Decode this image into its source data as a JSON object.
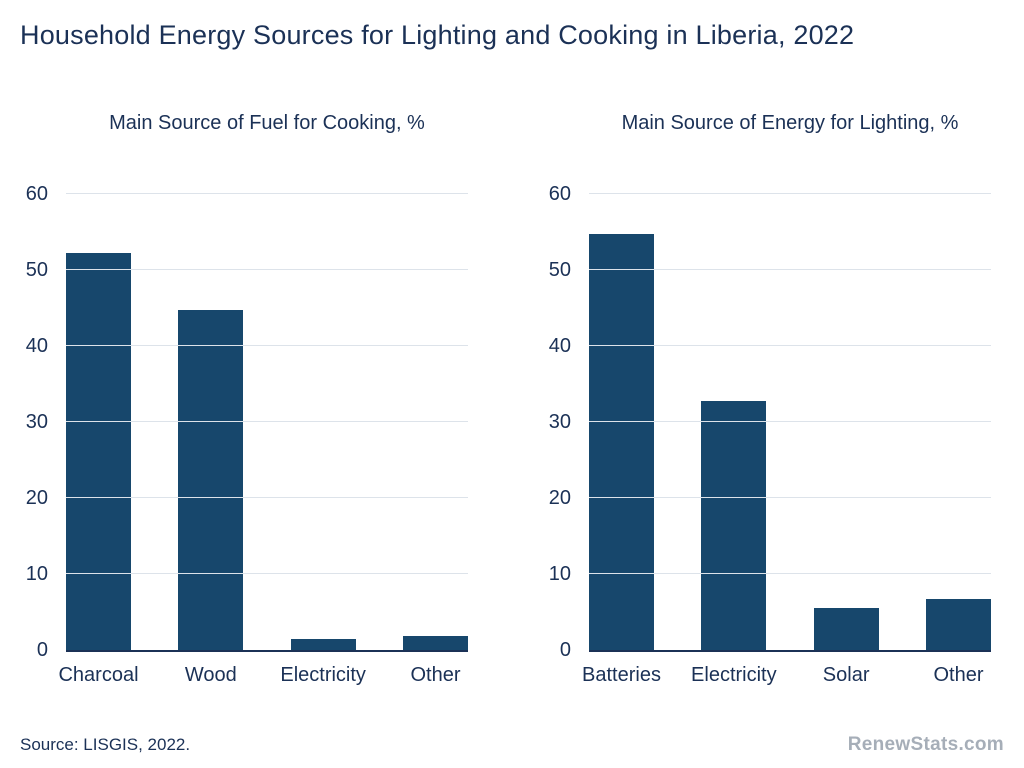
{
  "page": {
    "title": "Household Energy Sources for Lighting and Cooking in Liberia, 2022",
    "source_note": "Source: LISGIS, 2022.",
    "brand": "RenewStats.com"
  },
  "colors": {
    "background": "#FFFFFF",
    "bar": "#17476C",
    "text": "#1B3156",
    "gridline": "#DDE3EA",
    "brand_gray": "#A6AEB8"
  },
  "chart_data": [
    {
      "type": "bar",
      "title": "Main Source of Fuel for Cooking, %",
      "categories": [
        "Charcoal",
        "Wood",
        "Electricity",
        "Other"
      ],
      "values": [
        52.2,
        44.7,
        1.4,
        1.8
      ],
      "xlabel": "",
      "ylabel": "",
      "ylim": [
        0,
        60
      ],
      "yticks": [
        0,
        10,
        20,
        30,
        40,
        50,
        60
      ],
      "grid": true,
      "legend": "none"
    },
    {
      "type": "bar",
      "title": "Main Source of Energy for Lighting, %",
      "categories": [
        "Batteries",
        "Electricity",
        "Solar",
        "Other"
      ],
      "values": [
        54.8,
        32.7,
        5.5,
        6.7
      ],
      "xlabel": "",
      "ylabel": "",
      "ylim": [
        0,
        60
      ],
      "yticks": [
        0,
        10,
        20,
        30,
        40,
        50,
        60
      ],
      "grid": true,
      "legend": "none"
    }
  ]
}
